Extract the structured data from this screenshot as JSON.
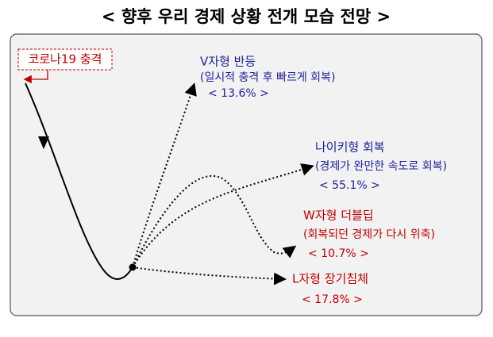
{
  "header": {
    "title": "< 향후 우리 경제 상황 전개 모습 전망 >"
  },
  "start_label": "코로나19 충격",
  "scenarios": [
    {
      "name": "V자형 반등",
      "description": "(일시적 충격 후 빠르게 회복)",
      "share": "< 13.6% >"
    },
    {
      "name": "나이키형 회복",
      "description": "(경제가 완만한 속도로 회복)",
      "share": "< 55.1% >"
    },
    {
      "name": "W자형 더블딥",
      "description": "(회복되던 경제가 다시 위축)",
      "share": "< 10.7% >"
    },
    {
      "name": "L자형 장기침체",
      "share": "< 17.8% >"
    }
  ]
}
